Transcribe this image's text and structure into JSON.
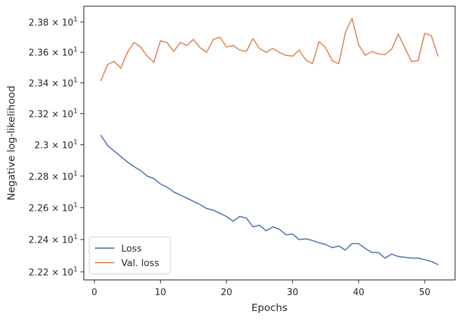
{
  "chart_data": {
    "type": "line",
    "xlabel": "Epochs",
    "ylabel": "Negative log-likelihood",
    "xlim": [
      -1.6,
      54.6
    ],
    "ylim": [
      22.15,
      23.905
    ],
    "xticks": [
      0,
      10,
      20,
      30,
      40,
      50
    ],
    "yticks": [
      {
        "value": 22.2,
        "mantissa": "2.22"
      },
      {
        "value": 22.4,
        "mantissa": "2.24"
      },
      {
        "value": 22.6,
        "mantissa": "2.26"
      },
      {
        "value": 22.8,
        "mantissa": "2.28"
      },
      {
        "value": 23.0,
        "mantissa": "2.3"
      },
      {
        "value": 23.2,
        "mantissa": "2.32"
      },
      {
        "value": 23.4,
        "mantissa": "2.34"
      },
      {
        "value": 23.6,
        "mantissa": "2.36"
      },
      {
        "value": 23.8,
        "mantissa": "2.38"
      }
    ],
    "ytick_suffix": "× 10",
    "ytick_exponent": "1",
    "yscale": "log",
    "grid": false,
    "legend_position": "lower-left",
    "x": [
      1,
      2,
      3,
      4,
      5,
      6,
      7,
      8,
      9,
      10,
      11,
      12,
      13,
      14,
      15,
      16,
      17,
      18,
      19,
      20,
      21,
      22,
      23,
      24,
      25,
      26,
      27,
      28,
      29,
      30,
      31,
      32,
      33,
      34,
      35,
      36,
      37,
      38,
      39,
      40,
      41,
      42,
      43,
      44,
      45,
      46,
      47,
      48,
      49,
      50,
      51,
      52
    ],
    "series": [
      {
        "name": "Loss",
        "color": "#4c72b0",
        "values": [
          23.06,
          22.995,
          22.96,
          22.925,
          22.89,
          22.86,
          22.835,
          22.8,
          22.785,
          22.75,
          22.73,
          22.7,
          22.68,
          22.66,
          22.64,
          22.62,
          22.595,
          22.585,
          22.565,
          22.545,
          22.515,
          22.545,
          22.535,
          22.48,
          22.49,
          22.455,
          22.48,
          22.465,
          22.43,
          22.435,
          22.4,
          22.405,
          22.395,
          22.38,
          22.37,
          22.35,
          22.36,
          22.335,
          22.375,
          22.375,
          22.345,
          22.32,
          22.32,
          22.285,
          22.31,
          22.295,
          22.29,
          22.285,
          22.285,
          22.275,
          22.265,
          22.245
        ]
      },
      {
        "name": "Val. loss",
        "color": "#dd8452",
        "values": [
          23.415,
          23.52,
          23.54,
          23.495,
          23.6,
          23.665,
          23.635,
          23.575,
          23.535,
          23.675,
          23.665,
          23.605,
          23.665,
          23.645,
          23.685,
          23.63,
          23.6,
          23.685,
          23.7,
          23.635,
          23.645,
          23.615,
          23.605,
          23.69,
          23.625,
          23.6,
          23.625,
          23.6,
          23.58,
          23.575,
          23.615,
          23.55,
          23.525,
          23.67,
          23.63,
          23.545,
          23.525,
          23.73,
          23.825,
          23.65,
          23.58,
          23.605,
          23.59,
          23.585,
          23.62,
          23.72,
          23.63,
          23.54,
          23.545,
          23.725,
          23.71,
          23.575
        ]
      }
    ]
  }
}
